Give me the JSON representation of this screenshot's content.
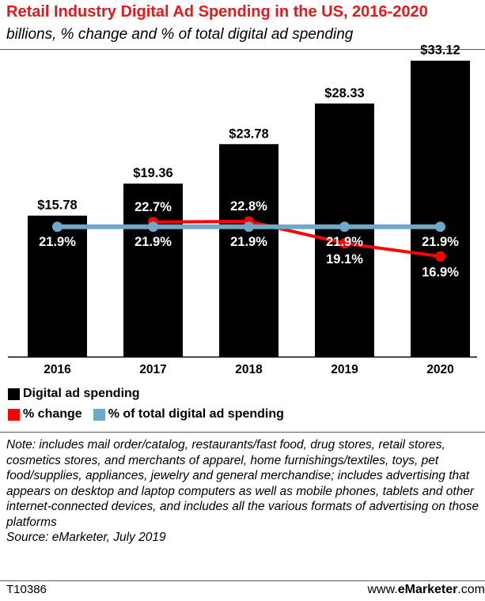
{
  "title": "Retail Industry Digital Ad Spending in the US, 2016-2020",
  "subtitle": "billions, % change and % of total digital ad spending",
  "colors": {
    "title": "#e4191c",
    "bar": "#000000",
    "change_line": "#ff0000",
    "share_line": "#6fa8c8"
  },
  "legend": {
    "bar_label": "Digital ad spending",
    "change_label": "% change",
    "share_label": "% of total digital ad spending"
  },
  "chart_data": {
    "type": "bar",
    "categories": [
      "2016",
      "2017",
      "2018",
      "2019",
      "2020"
    ],
    "series": [
      {
        "name": "Digital ad spending",
        "type": "bar",
        "values": [
          15.78,
          19.36,
          23.78,
          28.33,
          33.12
        ],
        "labels": [
          "$15.78",
          "$19.36",
          "$23.78",
          "$28.33",
          "$33.12"
        ]
      },
      {
        "name": "% change",
        "type": "line",
        "values": [
          null,
          22.7,
          22.8,
          19.1,
          16.9
        ],
        "labels": [
          "",
          "22.7%",
          "22.8%",
          "19.1%",
          "16.9%"
        ]
      },
      {
        "name": "% of total digital ad spending",
        "type": "line",
        "values": [
          21.9,
          21.9,
          21.9,
          21.9,
          21.9
        ],
        "labels": [
          "21.9%",
          "21.9%",
          "21.9%",
          "21.9%",
          "21.9%"
        ]
      }
    ],
    "ylim": [
      0,
      35
    ],
    "line_ylim": [
      0,
      50
    ]
  },
  "note": "Note: includes mail order/catalog, restaurants/fast food, drug stores, retail stores, cosmetics stores, and merchants of apparel, home furnishings/textiles, toys, pet food/supplies, appliances, jewelry and general merchandise; includes advertising that appears on desktop and laptop computers as well as mobile phones, tablets and other internet-connected devices, and includes all the various formats of advertising on those platforms",
  "source": "Source: eMarketer, July 2019",
  "footer": {
    "chart_id": "T10386",
    "site_prefix": "www.",
    "site_brand": "eMarketer",
    "site_suffix": ".com"
  }
}
